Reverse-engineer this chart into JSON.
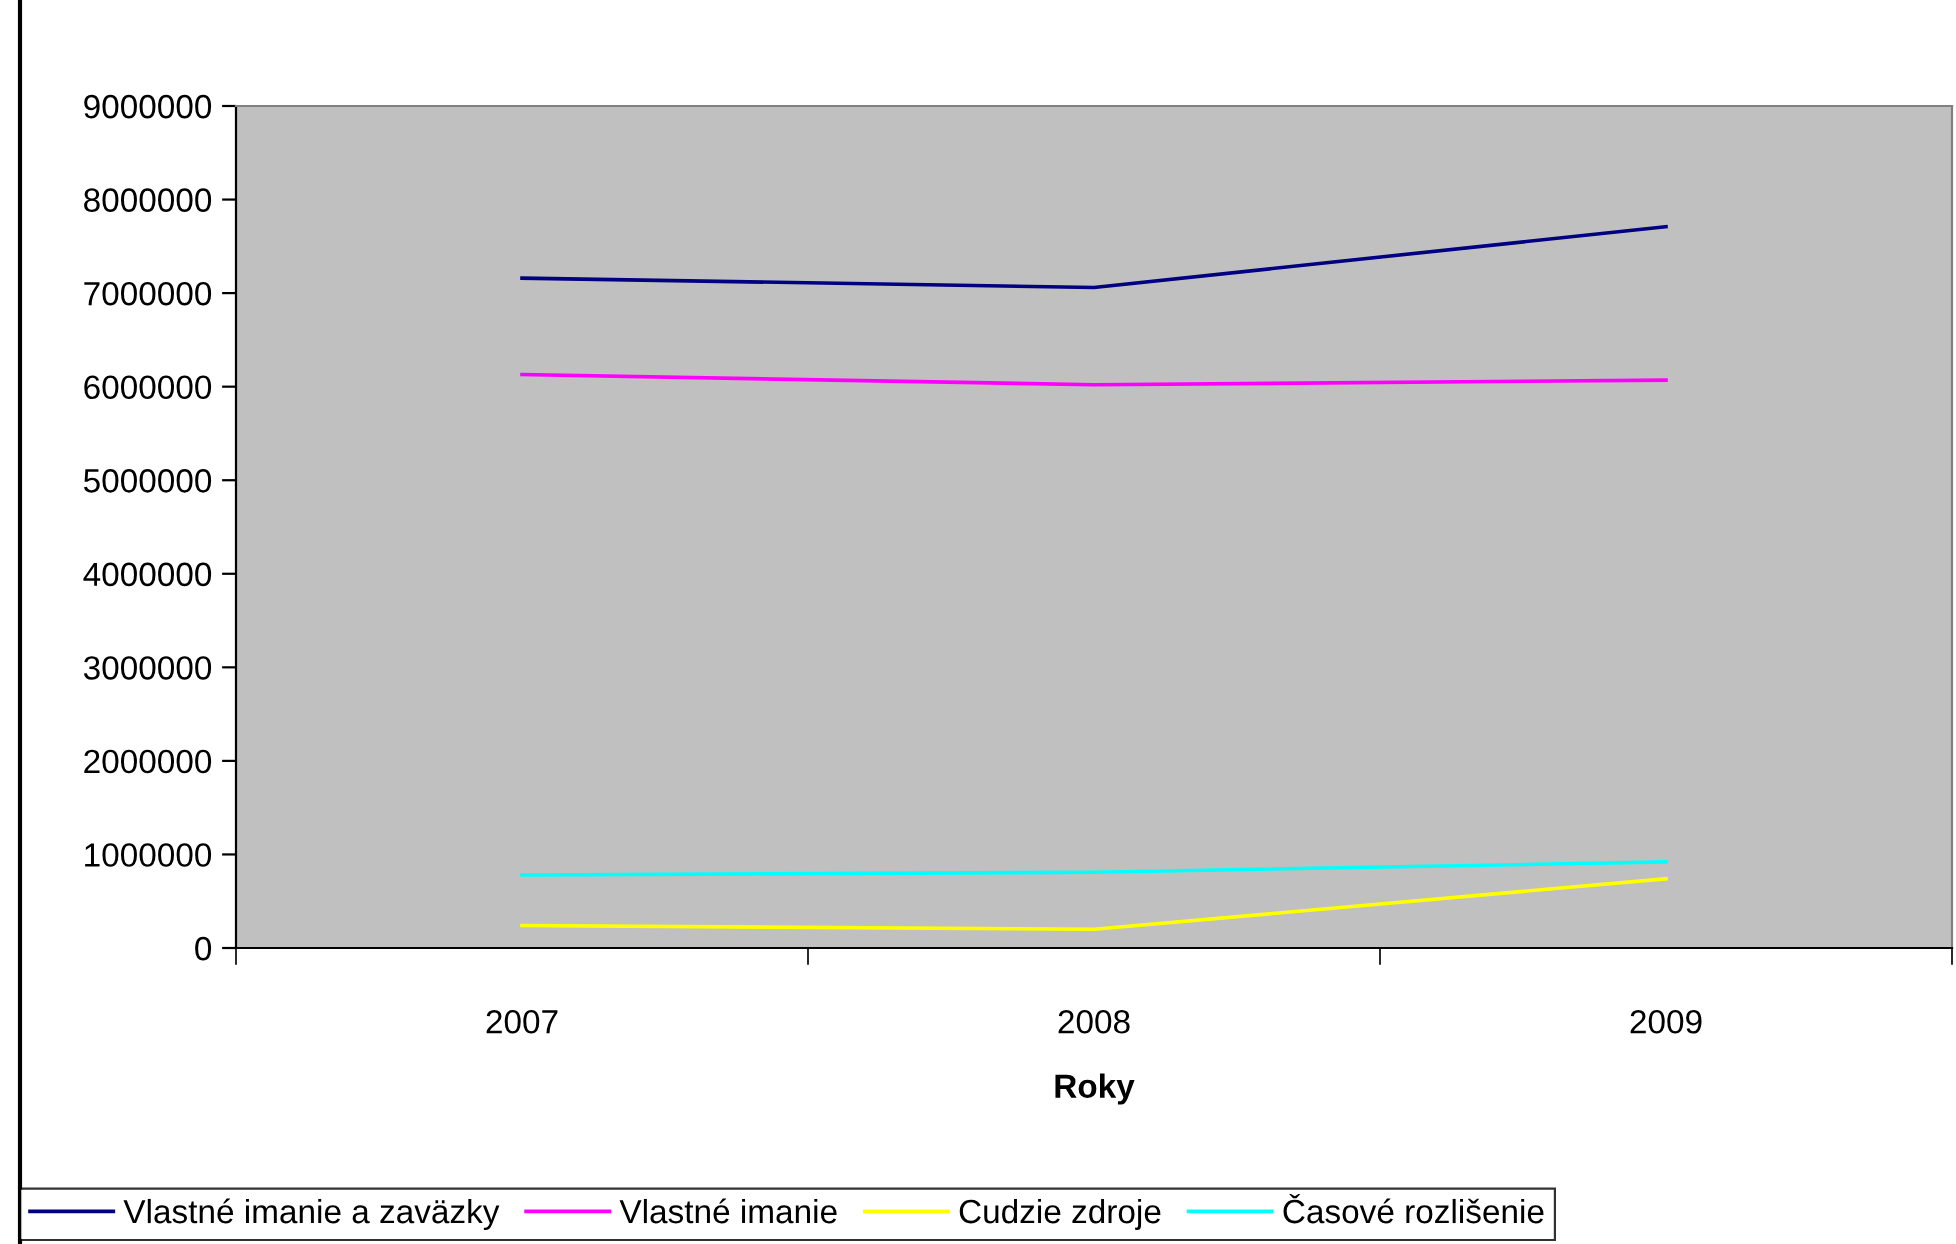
{
  "chart_data": {
    "type": "line",
    "xlabel": "Roky",
    "categories": [
      "2007",
      "2008",
      "2009"
    ],
    "series": [
      {
        "name": "Vlastné imanie a zaväzky",
        "color": "#000080",
        "values": [
          7160000,
          7060000,
          7710000
        ]
      },
      {
        "name": "Vlastné imanie",
        "color": "#ff00ff",
        "values": [
          6130000,
          6020000,
          6070000
        ]
      },
      {
        "name": "Cudzie zdroje",
        "color": "#ffff00",
        "values": [
          240000,
          200000,
          740000
        ]
      },
      {
        "name": "Časové rozlišenie",
        "color": "#00ffff",
        "values": [
          780000,
          810000,
          920000
        ]
      }
    ],
    "ylim": [
      0,
      9000000
    ],
    "yticks": [
      0,
      1000000,
      2000000,
      3000000,
      4000000,
      5000000,
      6000000,
      7000000,
      8000000,
      9000000
    ],
    "grid": false,
    "legend": "bottom",
    "marker": "none",
    "line_style": "solid"
  }
}
